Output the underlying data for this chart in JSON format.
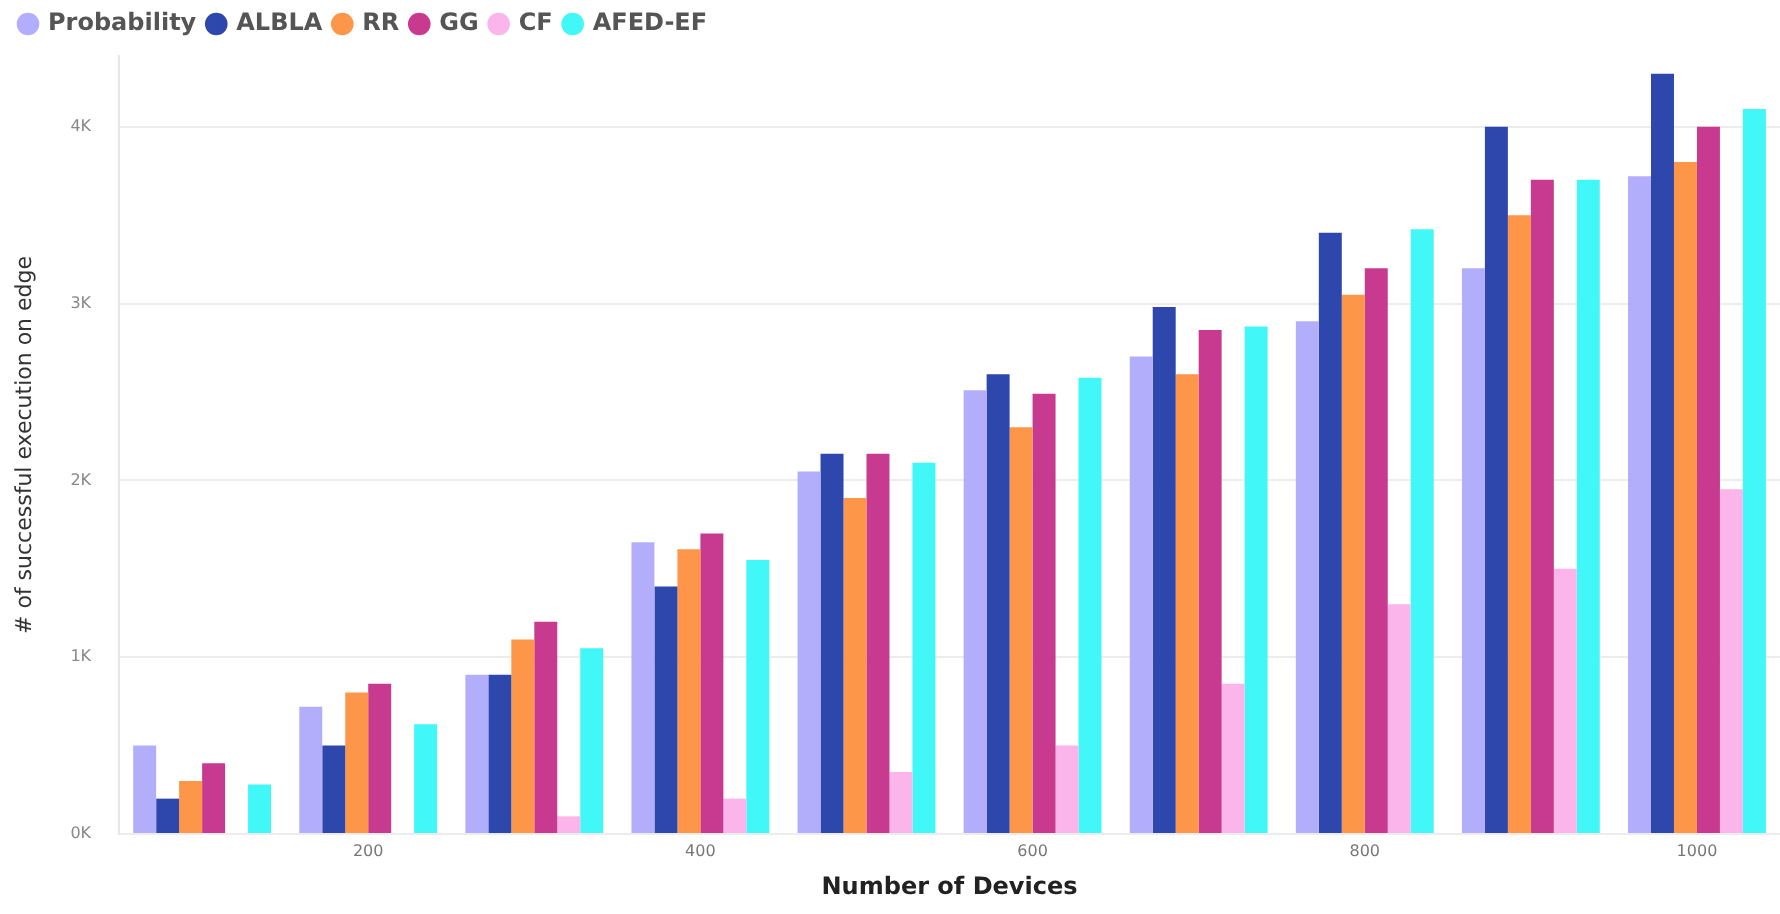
{
  "chart_data": {
    "type": "bar",
    "xlabel": "Number of Devices",
    "ylabel": "# of successful execution on edge",
    "categories": [
      null,
      "200",
      null,
      "400",
      null,
      "600",
      null,
      "800",
      null,
      "1000"
    ],
    "series": [
      {
        "name": "Probability",
        "color": "#b3aefc",
        "values": [
          500,
          720,
          900,
          1650,
          2050,
          2510,
          2700,
          2900,
          3200,
          3720
        ]
      },
      {
        "name": "ALBLA",
        "color": "#2e47ad",
        "values": [
          200,
          500,
          900,
          1400,
          2150,
          2600,
          2980,
          3400,
          4000,
          4300
        ]
      },
      {
        "name": "RR",
        "color": "#fd9648",
        "values": [
          300,
          800,
          1100,
          1610,
          1900,
          2300,
          2600,
          3050,
          3500,
          3800
        ]
      },
      {
        "name": "GG",
        "color": "#c73a8f",
        "values": [
          400,
          850,
          1200,
          1700,
          2150,
          2490,
          2850,
          3200,
          3700,
          4000
        ]
      },
      {
        "name": "CF",
        "color": "#fbb5ea",
        "values": [
          0,
          0,
          100,
          200,
          350,
          500,
          850,
          1300,
          1500,
          1950
        ]
      },
      {
        "name": "AFED-EF",
        "color": "#41f7f7",
        "values": [
          280,
          620,
          1050,
          1550,
          2100,
          2580,
          2870,
          3420,
          3700,
          4100
        ]
      }
    ],
    "yticks": [
      {
        "value": 0,
        "label": "0K"
      },
      {
        "value": 1000,
        "label": "1K"
      },
      {
        "value": 2000,
        "label": "2K"
      },
      {
        "value": 3000,
        "label": "3K"
      },
      {
        "value": 4000,
        "label": "4K"
      }
    ],
    "ylim": [
      0,
      4400
    ],
    "grid": "y",
    "legend": "top left"
  }
}
